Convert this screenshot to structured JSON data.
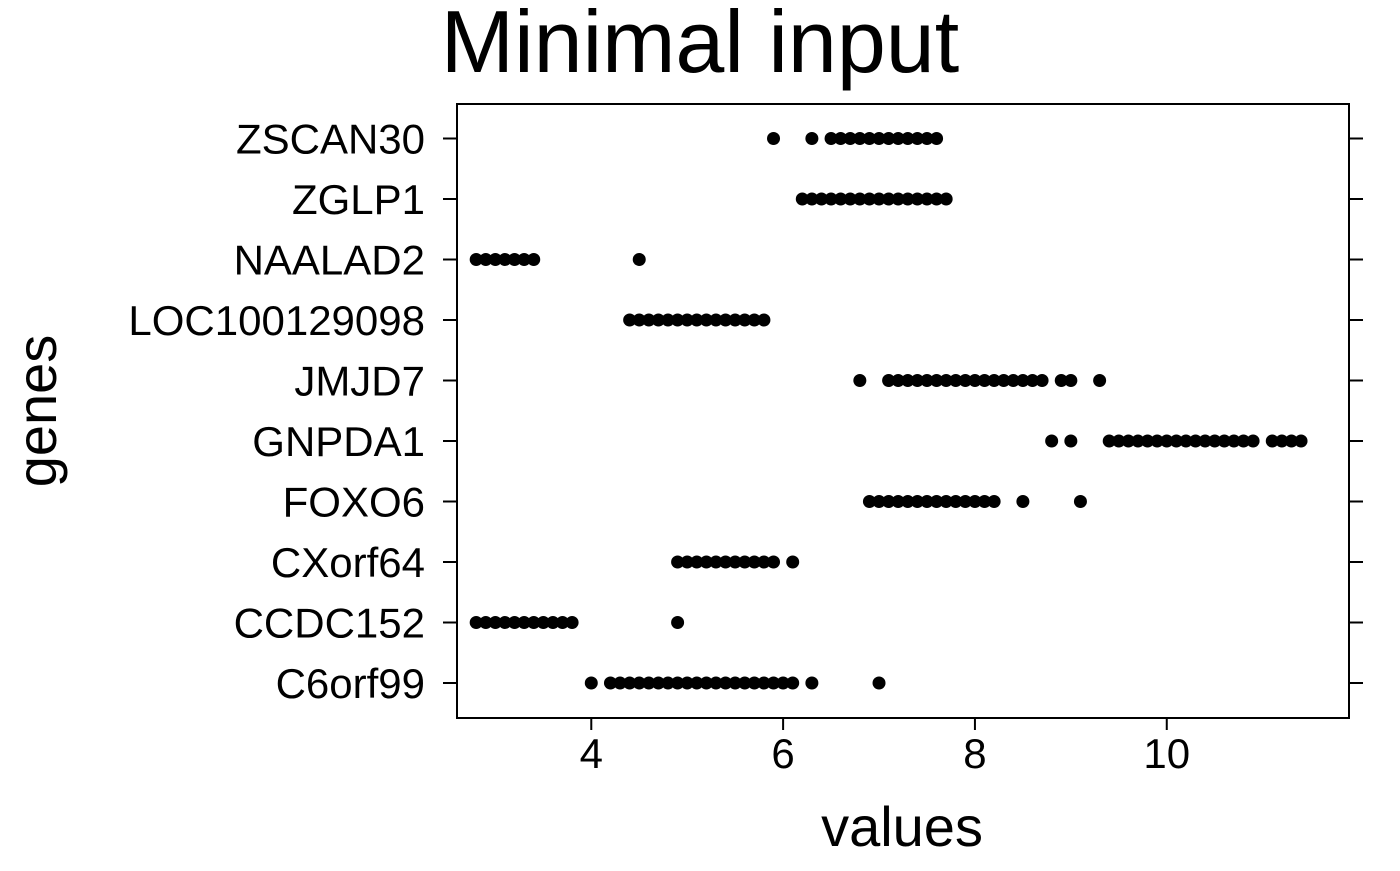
{
  "chart_data": {
    "type": "scatter",
    "title": "Minimal input",
    "xlabel": "values",
    "ylabel": "genes",
    "xlim": [
      2.6,
      11.9
    ],
    "x_ticks": [
      4,
      6,
      8,
      10
    ],
    "x_tick_labels": [
      "4",
      "6",
      "8",
      "10"
    ],
    "grid": false,
    "legend": "none",
    "point_color": "#000000",
    "categories": [
      "C6orf99",
      "CCDC152",
      "CXorf64",
      "FOXO6",
      "GNPDA1",
      "JMJD7",
      "LOC100129098",
      "NAALAD2",
      "ZGLP1",
      "ZSCAN30"
    ],
    "series": [
      {
        "category": "ZSCAN30",
        "x": [
          5.9,
          6.3,
          6.5,
          6.6,
          6.7,
          6.8,
          6.9,
          7.0,
          7.1,
          7.2,
          7.3,
          7.4,
          7.5,
          7.6
        ]
      },
      {
        "category": "ZGLP1",
        "x": [
          6.2,
          6.3,
          6.4,
          6.5,
          6.6,
          6.7,
          6.8,
          6.9,
          7.0,
          7.1,
          7.2,
          7.3,
          7.4,
          7.5,
          7.6,
          7.7
        ]
      },
      {
        "category": "NAALAD2",
        "x": [
          2.8,
          2.9,
          3.0,
          3.1,
          3.2,
          3.3,
          3.4,
          4.5
        ]
      },
      {
        "category": "LOC100129098",
        "x": [
          4.4,
          4.5,
          4.6,
          4.7,
          4.8,
          4.9,
          5.0,
          5.1,
          5.2,
          5.3,
          5.4,
          5.5,
          5.6,
          5.7,
          5.8
        ]
      },
      {
        "category": "JMJD7",
        "x": [
          6.8,
          7.1,
          7.2,
          7.3,
          7.4,
          7.5,
          7.6,
          7.7,
          7.8,
          7.9,
          8.0,
          8.1,
          8.2,
          8.3,
          8.4,
          8.5,
          8.6,
          8.7,
          8.9,
          9.0,
          9.3
        ]
      },
      {
        "category": "GNPDA1",
        "x": [
          8.8,
          9.0,
          9.4,
          9.5,
          9.6,
          9.7,
          9.8,
          9.9,
          10.0,
          10.1,
          10.2,
          10.3,
          10.4,
          10.5,
          10.6,
          10.7,
          10.8,
          10.9,
          11.1,
          11.2,
          11.3,
          11.4
        ]
      },
      {
        "category": "FOXO6",
        "x": [
          6.9,
          7.0,
          7.1,
          7.2,
          7.3,
          7.4,
          7.5,
          7.6,
          7.7,
          7.8,
          7.9,
          8.0,
          8.1,
          8.2,
          8.5,
          9.1
        ]
      },
      {
        "category": "CXorf64",
        "x": [
          4.9,
          5.0,
          5.1,
          5.2,
          5.3,
          5.4,
          5.5,
          5.6,
          5.7,
          5.8,
          5.9,
          6.1
        ]
      },
      {
        "category": "CCDC152",
        "x": [
          2.8,
          2.9,
          3.0,
          3.1,
          3.2,
          3.3,
          3.4,
          3.5,
          3.6,
          3.7,
          3.8,
          4.9
        ]
      },
      {
        "category": "C6orf99",
        "x": [
          4.0,
          4.2,
          4.3,
          4.4,
          4.5,
          4.6,
          4.7,
          4.8,
          4.9,
          5.0,
          5.1,
          5.2,
          5.3,
          5.4,
          5.5,
          5.6,
          5.7,
          5.8,
          5.9,
          6.0,
          6.1,
          6.3,
          7.0
        ]
      }
    ]
  }
}
